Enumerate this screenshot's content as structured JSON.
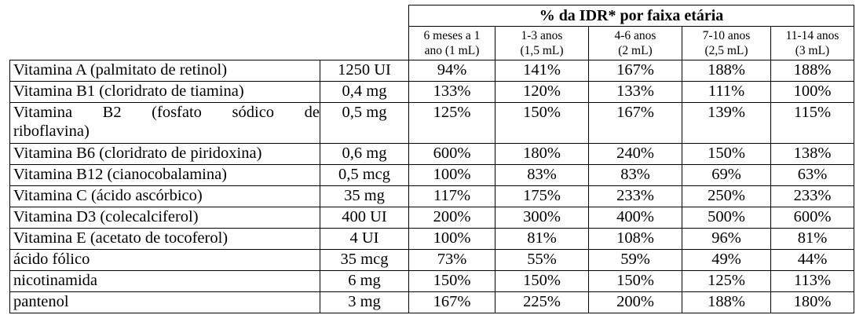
{
  "table": {
    "group_header": "% da IDR* por faixa etária",
    "age_columns": [
      {
        "line1": "6 meses a 1",
        "line2": "ano (1 mL)"
      },
      {
        "line1": "1-3 anos",
        "line2": "(1,5 mL)"
      },
      {
        "line1": "4-6 anos",
        "line2": "(2 mL)"
      },
      {
        "line1": "7-10 anos",
        "line2": "(2,5 mL)"
      },
      {
        "line1": "11-14 anos",
        "line2": "(3 mL)"
      }
    ],
    "rows": [
      {
        "name": "Vitamina A (palmitato de retinol)",
        "dose": "1250 UI",
        "values": [
          "94%",
          "141%",
          "167%",
          "188%",
          "188%"
        ]
      },
      {
        "name": "Vitamina B1 (cloridrato de tiamina)",
        "dose": "0,4 mg",
        "values": [
          "133%",
          "120%",
          "133%",
          "111%",
          "100%"
        ]
      },
      {
        "name_line1": "Vitamina B2 (fosfato sódico de",
        "name_line2": "riboflavina)",
        "dose": "0,5 mg",
        "values": [
          "125%",
          "150%",
          "167%",
          "139%",
          "115%"
        ]
      },
      {
        "name": "Vitamina B6 (cloridrato de piridoxina)",
        "dose": "0,6 mg",
        "values": [
          "600%",
          "180%",
          "240%",
          "150%",
          "138%"
        ]
      },
      {
        "name": "Vitamina B12 (cianocobalamina)",
        "dose": "0,5 mcg",
        "values": [
          "100%",
          "83%",
          "83%",
          "69%",
          "63%"
        ]
      },
      {
        "name": "Vitamina C (ácido ascórbico)",
        "dose": "35 mg",
        "values": [
          "117%",
          "175%",
          "233%",
          "250%",
          "233%"
        ]
      },
      {
        "name": "Vitamina D3 (colecalciferol)",
        "dose": "400 UI",
        "values": [
          "200%",
          "300%",
          "400%",
          "500%",
          "600%"
        ]
      },
      {
        "name": "Vitamina E (acetato de tocoferol)",
        "dose": "4 UI",
        "values": [
          "100%",
          "81%",
          "108%",
          "96%",
          "81%"
        ]
      },
      {
        "name": "ácido fólico",
        "dose": "35 mcg",
        "values": [
          "73%",
          "55%",
          "59%",
          "49%",
          "44%"
        ]
      },
      {
        "name": "nicotinamida",
        "dose": "6 mg",
        "values": [
          "150%",
          "150%",
          "150%",
          "125%",
          "113%"
        ]
      },
      {
        "name": "pantenol",
        "dose": "3 mg",
        "values": [
          "167%",
          "225%",
          "200%",
          "188%",
          "180%"
        ]
      }
    ]
  }
}
